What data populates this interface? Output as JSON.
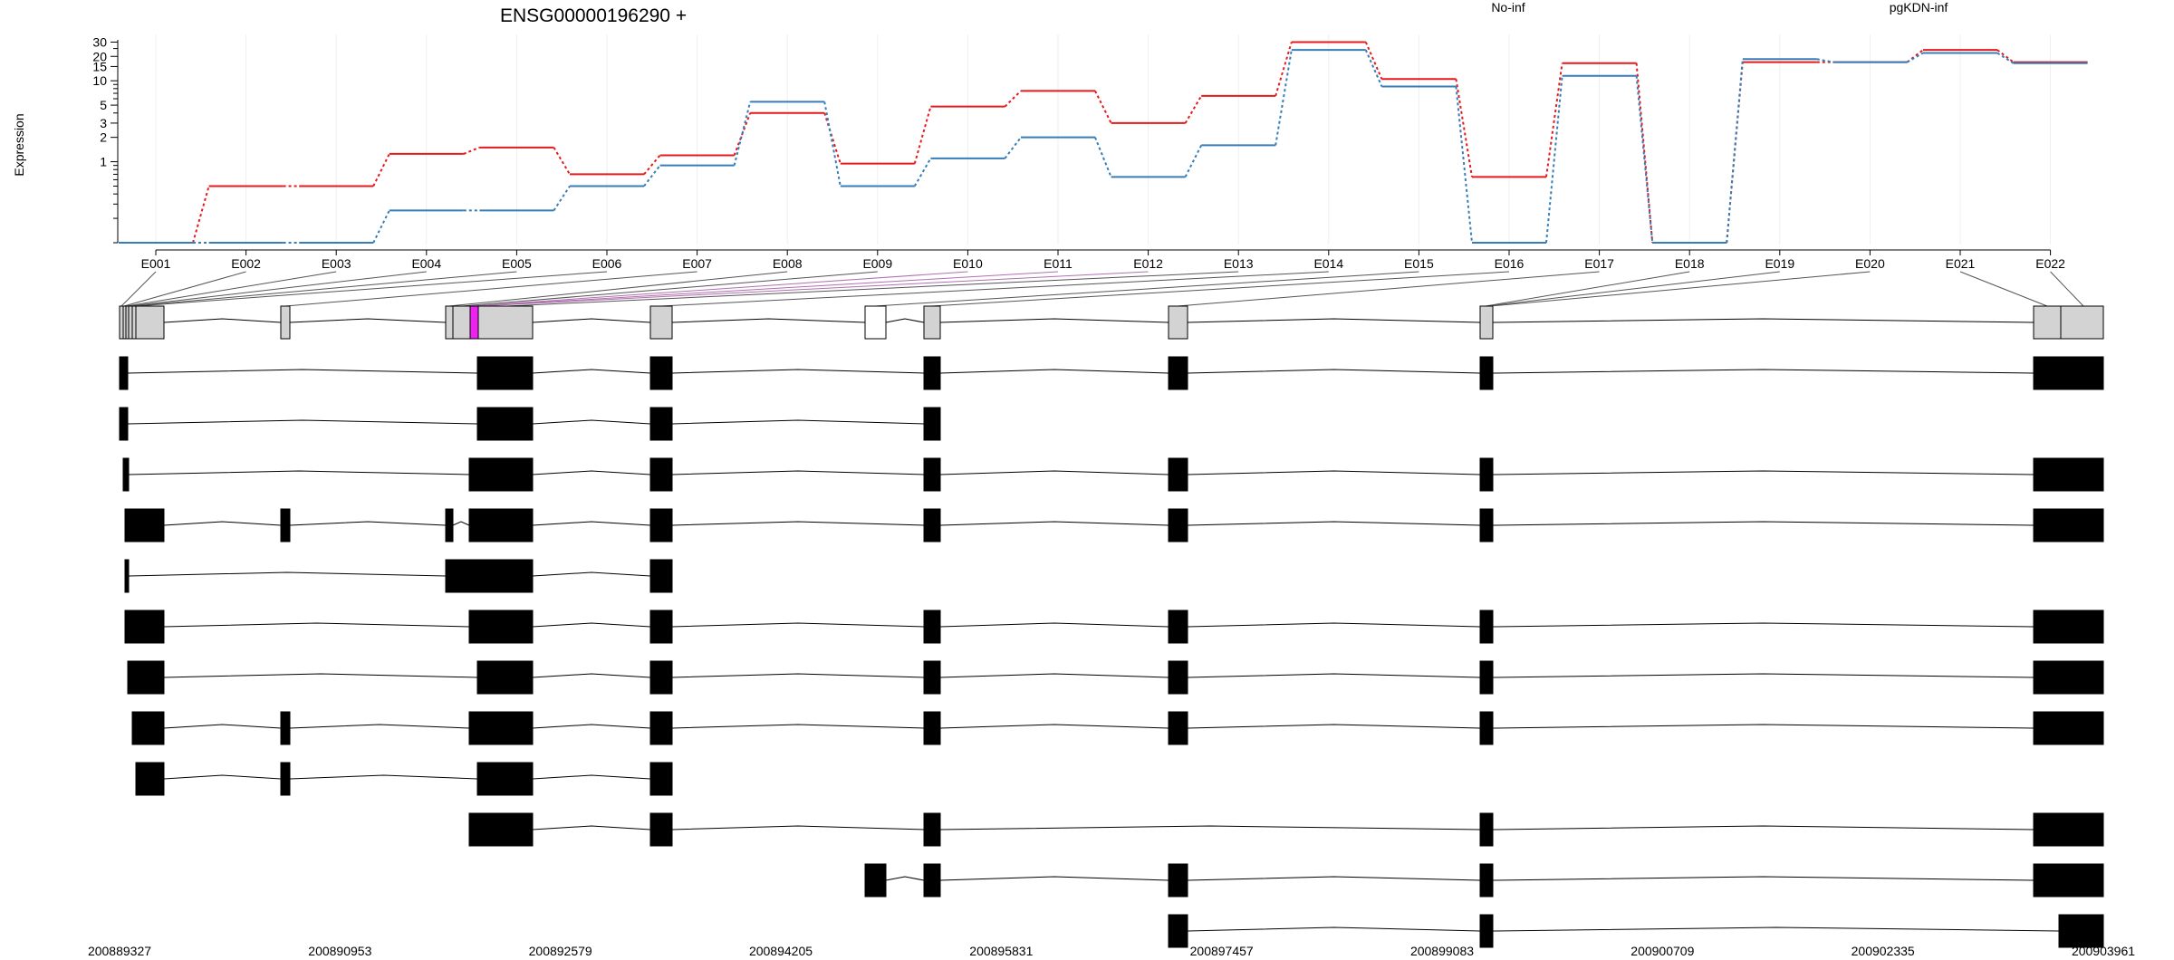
{
  "chart_data": {
    "type": "line",
    "title": "ENSG00000196290 +",
    "ylabel": "Expression",
    "y_scale": "log",
    "y_ticks": [
      "1",
      "2",
      "3",
      "5",
      "10",
      "15",
      "20",
      "30"
    ],
    "x": [
      "E001",
      "E002",
      "E003",
      "E004",
      "E005",
      "E006",
      "E007",
      "E008",
      "E009",
      "E010",
      "E011",
      "E012",
      "E013",
      "E014",
      "E015",
      "E016",
      "E017",
      "E018",
      "E019",
      "E020",
      "E021",
      "E022"
    ],
    "series": [
      {
        "name": "No-inf",
        "color": "#e41a1c",
        "values": [
          0.1,
          0.5,
          0.5,
          1.25,
          1.5,
          0.7,
          1.2,
          4.0,
          0.95,
          4.8,
          7.5,
          3.0,
          6.5,
          30.0,
          10.5,
          0.65,
          16.5,
          0.1,
          17.0,
          17.0,
          24.0,
          17.0
        ]
      },
      {
        "name": "pgKDN-inf",
        "color": "#377eb8",
        "values": [
          0.1,
          0.1,
          0.1,
          0.25,
          0.25,
          0.5,
          0.9,
          5.5,
          0.5,
          1.1,
          2.0,
          0.65,
          1.6,
          24.0,
          8.5,
          0.1,
          11.5,
          0.1,
          18.5,
          17.0,
          22.0,
          16.5
        ]
      }
    ],
    "legend_position": "top",
    "genomic_axis_labels": [
      "200889327",
      "200890953",
      "200892579",
      "200894205",
      "200895831",
      "200897457",
      "200899083",
      "200900709",
      "200902335",
      "200903961"
    ]
  }
}
